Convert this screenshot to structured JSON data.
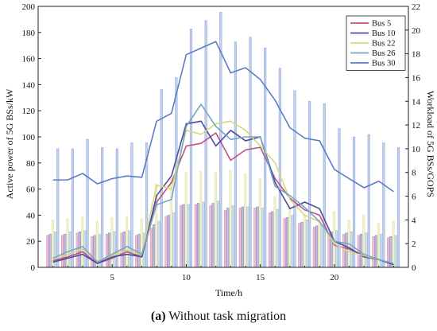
{
  "caption": {
    "prefix": "(a)",
    "text": " Without task migration"
  },
  "chart_data": {
    "type": "line+bar",
    "xlabel": "Time/h",
    "ylabel_left": "Active power of 5G BSs/kW",
    "ylabel_right": "Workload of 5G BSs/GOPS",
    "xlim": [
      0,
      25
    ],
    "ylim_left": [
      0,
      200
    ],
    "ylim_right": [
      0,
      22
    ],
    "x_ticks": [
      5,
      10,
      15,
      20
    ],
    "y_left_ticks": [
      0,
      20,
      40,
      60,
      80,
      100,
      120,
      140,
      160,
      180,
      200
    ],
    "y_right_ticks": [
      0,
      2,
      4,
      6,
      8,
      10,
      12,
      14,
      16,
      18,
      20,
      22
    ],
    "legend_position": "top-right",
    "hours": [
      1,
      2,
      3,
      4,
      5,
      6,
      7,
      8,
      9,
      10,
      11,
      12,
      13,
      14,
      15,
      16,
      17,
      18,
      19,
      20,
      21,
      22,
      23,
      24
    ],
    "series": [
      {
        "name": "Bus 5",
        "color": "#c0508a",
        "power": [
          5,
          8,
          12,
          3,
          7,
          12,
          8,
          50,
          65,
          93,
          95,
          103,
          82,
          90,
          92,
          68,
          53,
          44,
          40,
          17,
          14,
          9,
          6,
          2
        ],
        "workload": [
          2.7,
          2.7,
          2.9,
          2.6,
          2.8,
          2.9,
          2.7,
          3.3,
          4.3,
          5.2,
          5.3,
          5.2,
          4.8,
          5.0,
          5.0,
          4.6,
          4.1,
          3.7,
          3.4,
          2.9,
          2.8,
          2.7,
          2.6,
          2.5
        ]
      },
      {
        "name": "Bus 10",
        "color": "#4a4aa0",
        "power": [
          4,
          7,
          10,
          3,
          8,
          10,
          8,
          55,
          70,
          110,
          112,
          93,
          105,
          97,
          100,
          65,
          45,
          50,
          45,
          20,
          15,
          8,
          6,
          2
        ],
        "workload": [
          2.8,
          2.8,
          3.0,
          2.7,
          2.9,
          3.0,
          2.8,
          3.6,
          4.4,
          5.3,
          5.4,
          5.4,
          5.0,
          5.1,
          5.1,
          4.7,
          4.2,
          3.8,
          3.5,
          3.0,
          2.9,
          2.8,
          2.7,
          2.6
        ]
      },
      {
        "name": "Bus 22",
        "color": "#d8d87a",
        "power": [
          6,
          10,
          14,
          5,
          9,
          13,
          10,
          63,
          60,
          105,
          102,
          110,
          112,
          105,
          93,
          80,
          52,
          40,
          35,
          18,
          12,
          9,
          6,
          3
        ],
        "workload": [
          4.0,
          4.1,
          4.3,
          3.9,
          4.2,
          4.3,
          4.1,
          7.0,
          7.5,
          8.0,
          8.1,
          8.0,
          8.2,
          7.9,
          7.5,
          6.0,
          5.1,
          4.4,
          4.0,
          4.7,
          4.0,
          4.4,
          3.7,
          3.9
        ]
      },
      {
        "name": "Bus 26",
        "color": "#74a6c8",
        "power": [
          7,
          12,
          16,
          4,
          10,
          16,
          10,
          48,
          52,
          108,
          125,
          108,
          98,
          100,
          100,
          62,
          55,
          46,
          35,
          20,
          18,
          10,
          6,
          3
        ],
        "workload": [
          3.0,
          3.0,
          3.1,
          2.8,
          3.0,
          3.1,
          2.9,
          3.9,
          4.6,
          5.3,
          5.5,
          5.6,
          5.2,
          5.1,
          5.0,
          4.9,
          4.4,
          4.0,
          3.6,
          3.1,
          3.0,
          2.9,
          2.8,
          2.7
        ]
      },
      {
        "name": "Bus 30",
        "color": "#5a7cc8",
        "power": [
          67,
          67,
          72,
          64,
          68,
          70,
          69,
          112,
          118,
          163,
          168,
          173,
          149,
          153,
          144,
          128,
          107,
          99,
          97,
          75,
          68,
          61,
          66,
          58
        ],
        "workload": [
          10.0,
          10.0,
          10.8,
          10.1,
          10.0,
          10.5,
          10.5,
          15.0,
          16.0,
          20.1,
          20.8,
          21.5,
          19.0,
          19.4,
          18.5,
          16.8,
          14.9,
          14.0,
          13.8,
          11.7,
          11.0,
          11.2,
          10.5,
          10.1
        ]
      }
    ]
  }
}
